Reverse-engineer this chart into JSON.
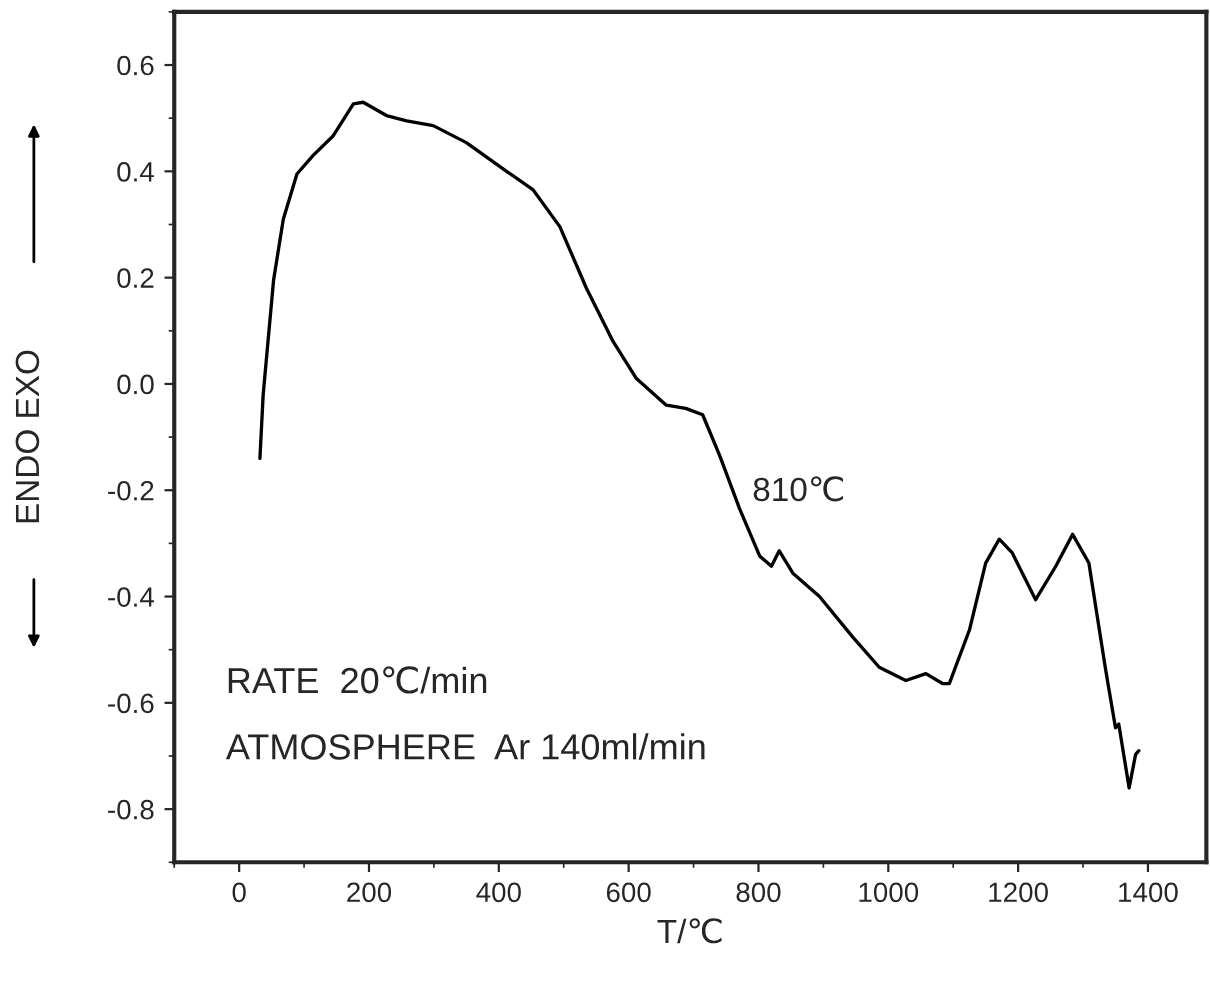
{
  "chart_data": {
    "type": "line",
    "xlabel": "T/℃",
    "ylabel": "ENDO EXO",
    "xlim": [
      -100,
      1490
    ],
    "ylim": [
      -0.9,
      0.7
    ],
    "xticks": [
      0,
      200,
      400,
      600,
      800,
      1000,
      1200,
      1400
    ],
    "yticks": [
      {
        "value": -0.8,
        "label": "-0.8"
      },
      {
        "value": -0.6,
        "label": "-0.6"
      },
      {
        "value": -0.4,
        "label": "-0.4"
      },
      {
        "value": -0.2,
        "label": "-0.2"
      },
      {
        "value": 0.0,
        "label": "0.0"
      },
      {
        "value": 0.2,
        "label": "0.2"
      },
      {
        "value": 0.4,
        "label": "0.4"
      },
      {
        "value": 0.6,
        "label": "0.6"
      }
    ],
    "grid": false,
    "legend": false,
    "marker": "none",
    "line_style": "solid",
    "series": [
      {
        "color": "#000000",
        "x": [
          32,
          37,
          53,
          68,
          89,
          114,
          145,
          176,
          191,
          227,
          258,
          299,
          350,
          412,
          453,
          494,
          535,
          576,
          612,
          658,
          688,
          714,
          740,
          771,
          802,
          820,
          832,
          853,
          894,
          945,
          986,
          1027,
          1058,
          1084,
          1094,
          1125,
          1150,
          1171,
          1191,
          1227,
          1258,
          1284,
          1309,
          1335,
          1350,
          1355,
          1371,
          1381,
          1386
        ],
        "values": [
          -0.14,
          -0.02,
          0.195,
          0.31,
          0.395,
          0.43,
          0.467,
          0.527,
          0.53,
          0.505,
          0.495,
          0.486,
          0.454,
          0.4,
          0.365,
          0.296,
          0.18,
          0.08,
          0.01,
          -0.04,
          -0.046,
          -0.058,
          -0.134,
          -0.235,
          -0.324,
          -0.343,
          -0.314,
          -0.356,
          -0.4,
          -0.476,
          -0.533,
          -0.558,
          -0.545,
          -0.564,
          -0.564,
          -0.463,
          -0.337,
          -0.292,
          -0.318,
          -0.406,
          -0.343,
          -0.283,
          -0.337,
          -0.539,
          -0.647,
          -0.64,
          -0.76,
          -0.697,
          -0.69
        ]
      }
    ],
    "annotations": [
      "810℃",
      "RATE  20℃/min",
      "ATMOSPHERE  Ar 140ml/min"
    ]
  }
}
